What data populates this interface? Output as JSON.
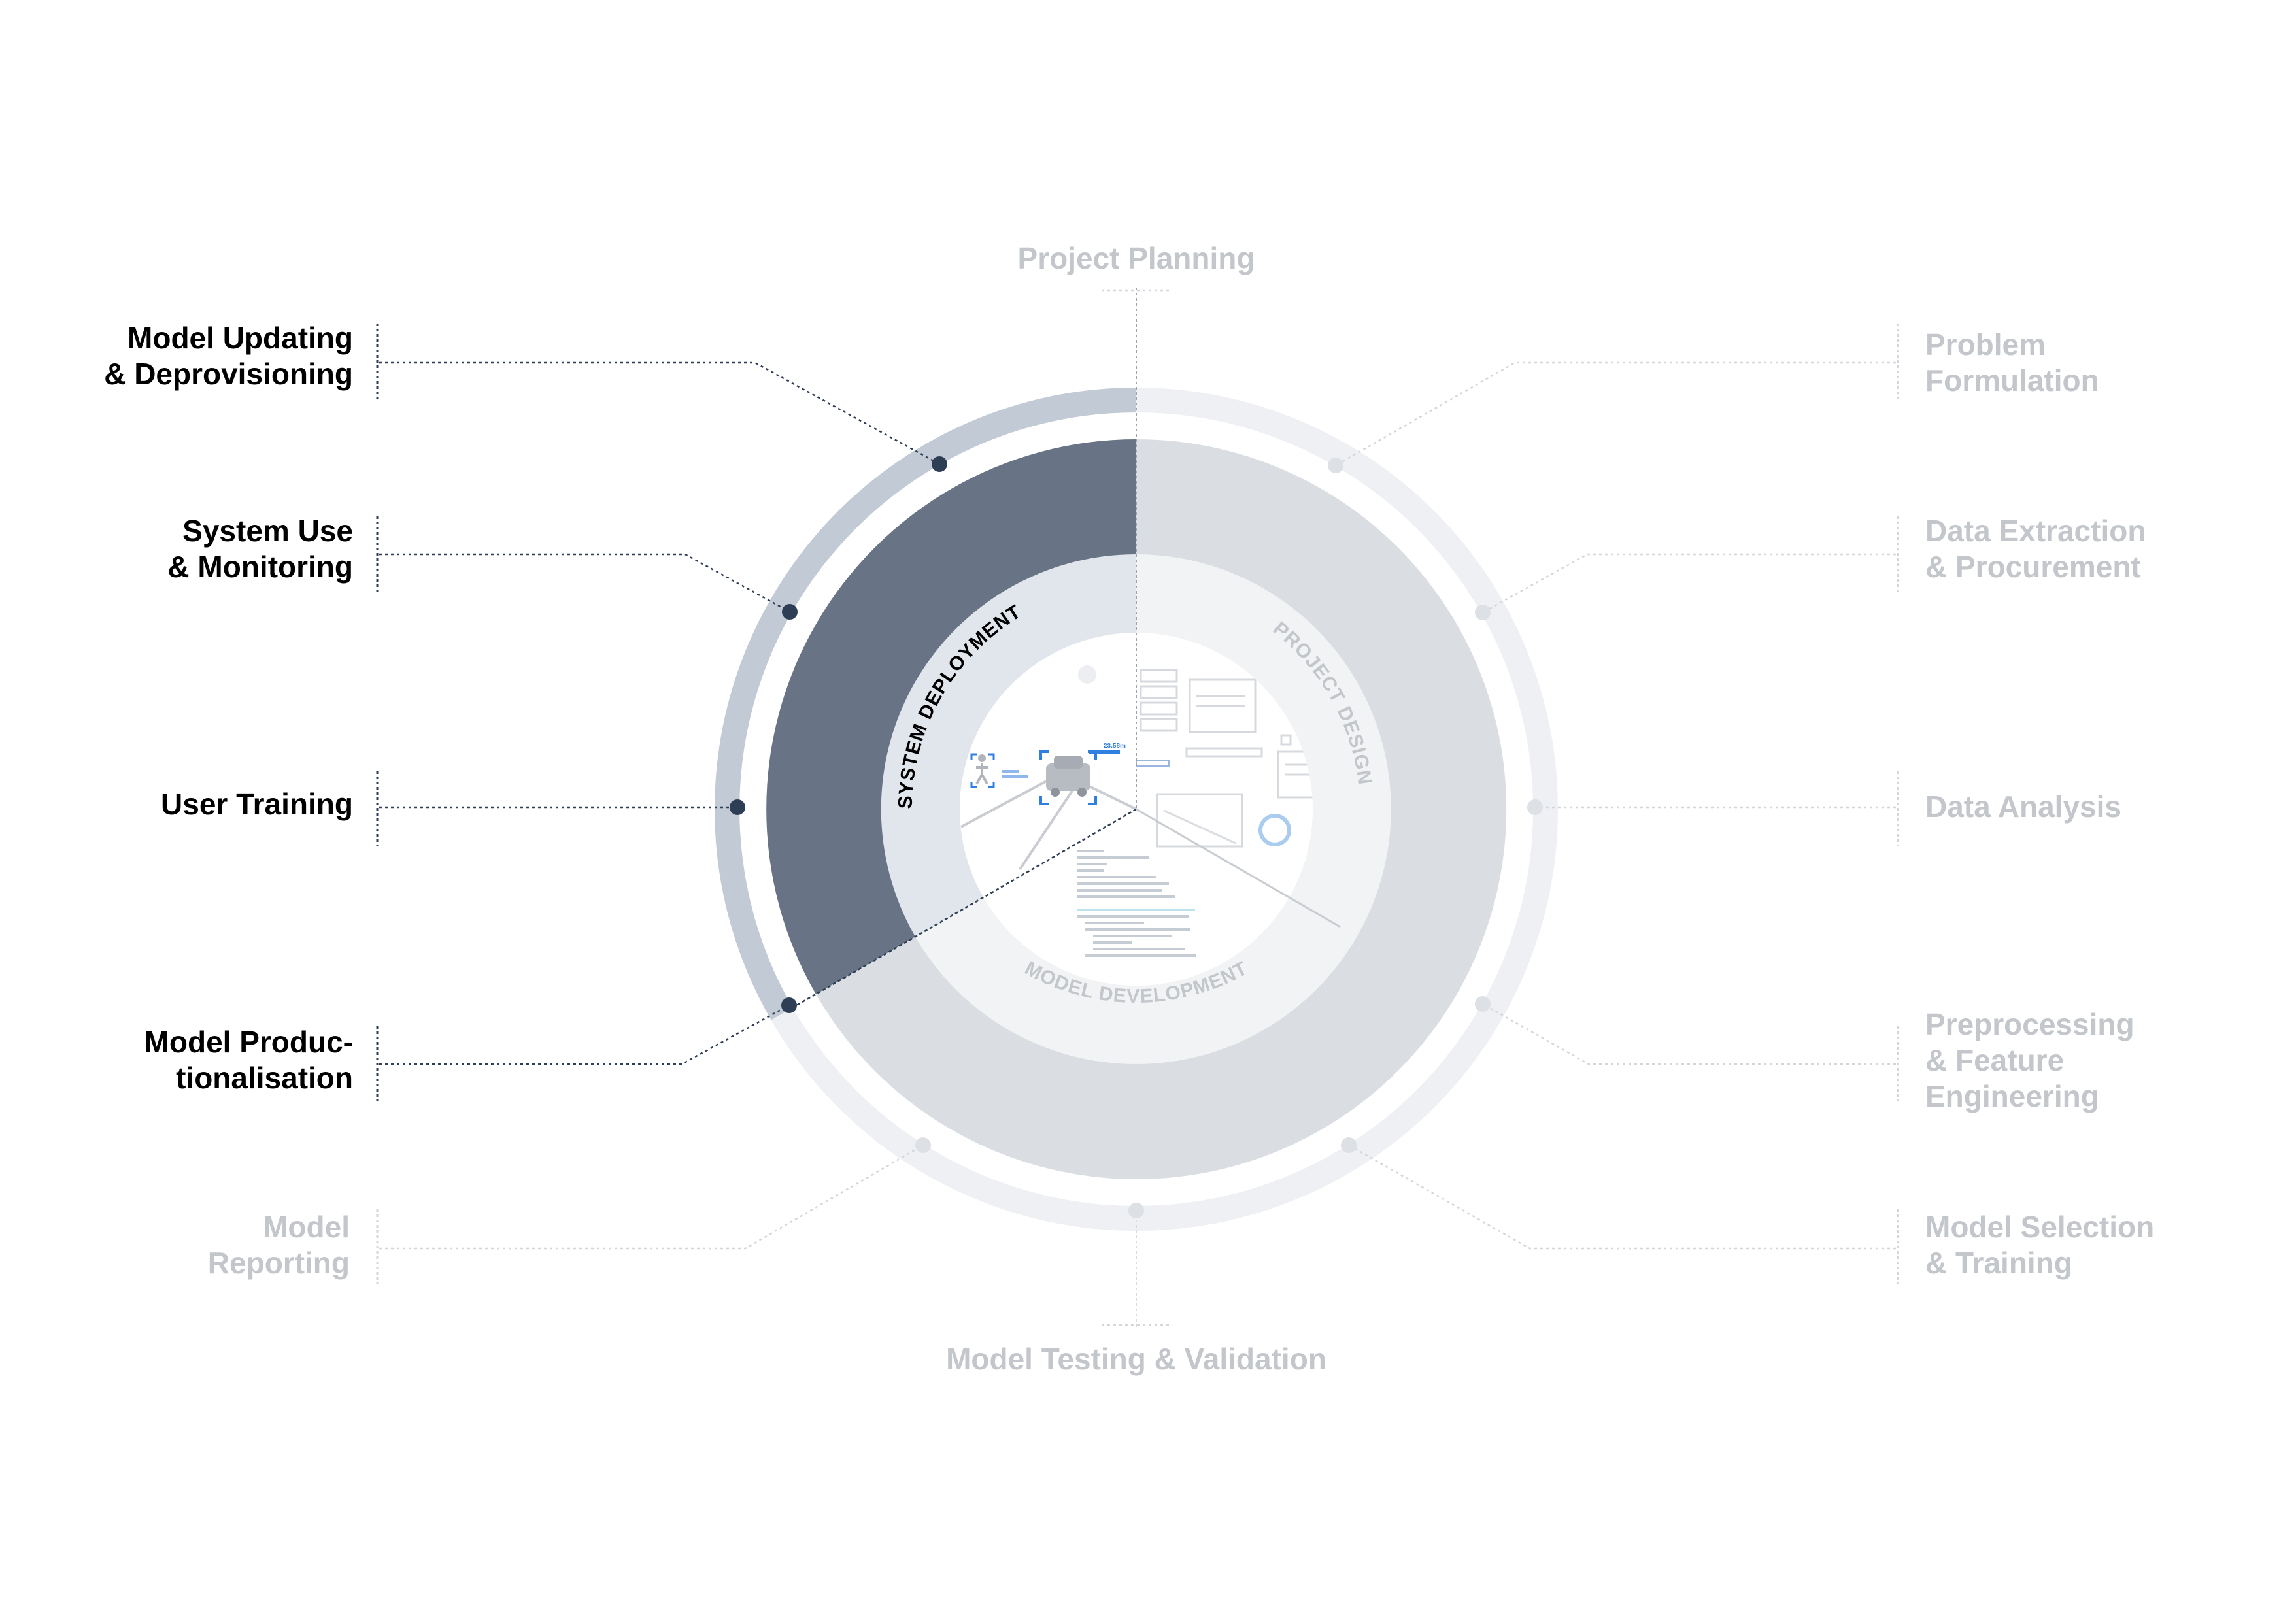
{
  "colors": {
    "active_ring": "#687485",
    "active_outer": "#c2cad6",
    "inactive_ring": "#dadde2",
    "inactive_outer": "#eef0f3",
    "inner_active": "#e1e5ec",
    "inner_inactive": "#f2f3f5",
    "center": "#ffffff",
    "dot_active": "#2d3e55",
    "dot_inactive": "#dde0e4",
    "label_active": "#000000",
    "label_inactive": "#c3c6cb",
    "accent_blue": "#2f7fe0"
  },
  "phases": {
    "system_deployment": "SYSTEM DEPLOYMENT",
    "project_design": "PROJECT DESIGN",
    "model_development": "MODEL DEVELOPMENT"
  },
  "stages": {
    "project_planning": "Project Planning",
    "problem_formulation": "Problem\nFormulation",
    "data_extraction": "Data Extraction\n& Procurement",
    "data_analysis": "Data Analysis",
    "preprocessing": "Preprocessing\n& Feature\nEngineering",
    "model_selection": "Model Selection\n& Training",
    "model_testing": "Model Testing & Validation",
    "model_reporting": "Model\nReporting",
    "model_productionalisation": "Model Produc-\ntionalisation",
    "user_training": "User Training",
    "system_use": "System Use\n& Monitoring",
    "model_updating": "Model Updating\n& Deprovisioning"
  },
  "illustration": {
    "distance_label": "23.58m"
  }
}
